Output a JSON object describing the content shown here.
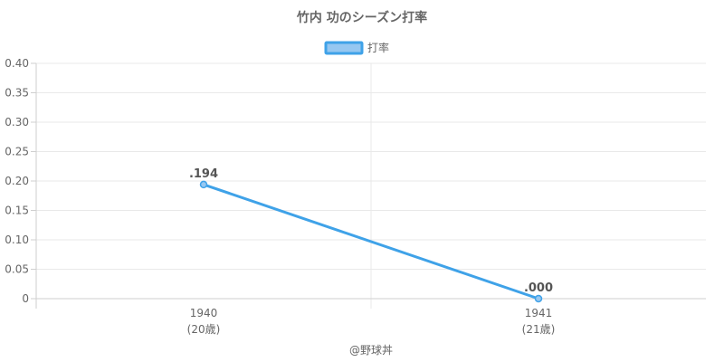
{
  "chart_data": {
    "type": "line",
    "title": "竹内 功のシーズン打率",
    "legend": {
      "label": "打率",
      "position": "top"
    },
    "x": [
      "1940",
      "1941"
    ],
    "x_sublabels": [
      "(20歳)",
      "(21歳)"
    ],
    "series": [
      {
        "name": "打率",
        "values": [
          0.194,
          0.0
        ],
        "data_labels": [
          ".194",
          ".000"
        ],
        "color": "#3FA2E8",
        "fill": "#96C7F1"
      }
    ],
    "ylim": [
      0,
      0.4
    ],
    "yticks": [
      0,
      0.05,
      0.1,
      0.15,
      0.2,
      0.25,
      0.3,
      0.35,
      0.4
    ],
    "ytick_labels": [
      "0",
      "0.05",
      "0.10",
      "0.15",
      "0.20",
      "0.25",
      "0.30",
      "0.35",
      "0.40"
    ],
    "grid": true,
    "credit": "@野球丼"
  }
}
